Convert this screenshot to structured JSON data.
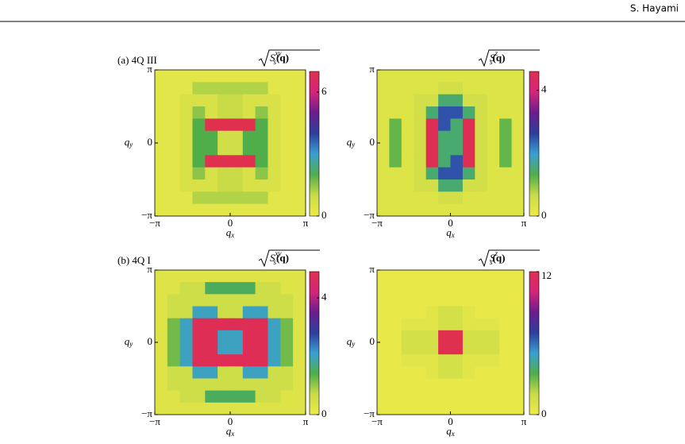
{
  "header": "S. Hayami",
  "chart_data": [
    {
      "type": "heatmap",
      "panel_label": "(a) 4Q III",
      "colorbar_label": {
        "base": "S",
        "sub": "s",
        "sup": "xy",
        "arg": "(q)"
      },
      "xlabel": {
        "base": "q",
        "sub": "x"
      },
      "ylabel": {
        "base": "q",
        "sub": "y"
      },
      "xlim": [
        -3.1416,
        3.1416
      ],
      "ylim": [
        -3.1416,
        3.1416
      ],
      "xticks": [
        {
          "value": -3.1416,
          "label": "−π"
        },
        0,
        {
          "value": 3.1416,
          "label": "π"
        }
      ],
      "yticks": [
        {
          "value": -3.1416,
          "label": "−π"
        },
        0,
        {
          "value": 3.1416,
          "label": "π"
        }
      ],
      "zlim": [
        0,
        7
      ],
      "zticks": [
        0,
        6
      ],
      "colormap": [
        "#eeea48",
        "#c9dc48",
        "#4fae4a",
        "#3aa0d2",
        "#2d3f9e",
        "#6a1d8e",
        "#d5247a",
        "#e03050"
      ],
      "z": [
        [
          0.3,
          0.3,
          0.3,
          0.3,
          0.3,
          0.3,
          0.3,
          0.3,
          0.3,
          0.3,
          0.3,
          0.3
        ],
        [
          0.3,
          0.3,
          0.3,
          1.2,
          1.2,
          1.2,
          1.2,
          1.2,
          1.2,
          0.3,
          0.3,
          0.3
        ],
        [
          0.3,
          0.3,
          0.6,
          0.6,
          0.6,
          1.0,
          1.0,
          0.6,
          0.6,
          0.6,
          0.3,
          0.3
        ],
        [
          0.3,
          0.3,
          0.6,
          1.5,
          0.6,
          1.0,
          1.0,
          0.6,
          1.5,
          0.6,
          0.3,
          0.3
        ],
        [
          0.3,
          0.3,
          0.6,
          2.0,
          7,
          7,
          7,
          7,
          2.0,
          0.6,
          0.3,
          0.3
        ],
        [
          0.3,
          0.3,
          0.6,
          2.0,
          2.0,
          0.8,
          0.8,
          2.0,
          2.0,
          0.6,
          0.3,
          0.3
        ],
        [
          0.3,
          0.3,
          0.6,
          2.0,
          2.0,
          0.8,
          0.8,
          2.0,
          2.0,
          0.6,
          0.3,
          0.3
        ],
        [
          0.3,
          0.3,
          0.6,
          2.0,
          7,
          7,
          7,
          7,
          2.0,
          0.6,
          0.3,
          0.3
        ],
        [
          0.3,
          0.3,
          0.6,
          1.5,
          0.6,
          1.0,
          1.0,
          0.6,
          1.5,
          0.6,
          0.3,
          0.3
        ],
        [
          0.3,
          0.3,
          0.6,
          0.6,
          0.6,
          1.0,
          1.0,
          0.6,
          0.6,
          0.6,
          0.3,
          0.3
        ],
        [
          0.3,
          0.3,
          0.3,
          1.2,
          1.2,
          1.2,
          1.2,
          1.2,
          1.2,
          0.3,
          0.3,
          0.3
        ],
        [
          0.3,
          0.3,
          0.3,
          0.3,
          0.3,
          0.3,
          0.3,
          0.3,
          0.3,
          0.3,
          0.3,
          0.3
        ]
      ]
    },
    {
      "type": "heatmap",
      "colorbar_label": {
        "base": "S",
        "sub": "s",
        "sup": "z",
        "arg": "(q)"
      },
      "xlabel": {
        "base": "q",
        "sub": "x"
      },
      "ylabel": {
        "base": "q",
        "sub": "y"
      },
      "xlim": [
        -3.1416,
        3.1416
      ],
      "ylim": [
        -3.1416,
        3.1416
      ],
      "xticks": [
        {
          "value": -3.1416,
          "label": "−π"
        },
        0,
        {
          "value": 3.1416,
          "label": "π"
        }
      ],
      "yticks": [
        {
          "value": -3.1416,
          "label": "−π"
        },
        0,
        {
          "value": 3.1416,
          "label": "π"
        }
      ],
      "zlim": [
        0,
        4.6
      ],
      "zticks": [
        0,
        4
      ],
      "colormap": [
        "#eeea48",
        "#c9dc48",
        "#4fae4a",
        "#3aa0d2",
        "#2d3f9e",
        "#6a1d8e",
        "#d5247a",
        "#e03050"
      ],
      "z": [
        [
          0.3,
          0.3,
          0.3,
          0.3,
          0.3,
          0.3,
          0.3,
          0.3,
          0.3,
          0.3,
          0.3,
          0.3
        ],
        [
          0.3,
          0.3,
          0.3,
          0.3,
          0.3,
          0.5,
          0.5,
          0.3,
          0.3,
          0.3,
          0.3,
          0.3
        ],
        [
          0.3,
          0.3,
          0.3,
          0.5,
          0.5,
          1.5,
          1.5,
          0.5,
          0.5,
          0.3,
          0.3,
          0.3
        ],
        [
          0.3,
          0.3,
          0.3,
          0.5,
          1.5,
          2.5,
          2.5,
          1.5,
          0.5,
          0.3,
          0.3,
          0.3
        ],
        [
          0.3,
          1.2,
          0.3,
          0.5,
          4.5,
          2.5,
          1.5,
          4.5,
          0.5,
          0.3,
          1.2,
          0.3
        ],
        [
          0.3,
          1.2,
          0.3,
          0.5,
          4.5,
          1.5,
          1.5,
          4.5,
          0.5,
          0.3,
          1.2,
          0.3
        ],
        [
          0.3,
          1.2,
          0.3,
          0.5,
          4.5,
          1.5,
          1.5,
          4.5,
          0.5,
          0.3,
          1.2,
          0.3
        ],
        [
          0.3,
          1.2,
          0.3,
          0.5,
          4.5,
          1.5,
          2.5,
          4.5,
          0.5,
          0.3,
          1.2,
          0.3
        ],
        [
          0.3,
          0.3,
          0.3,
          0.5,
          1.5,
          2.5,
          2.5,
          1.5,
          0.5,
          0.3,
          0.3,
          0.3
        ],
        [
          0.3,
          0.3,
          0.3,
          0.5,
          0.5,
          1.5,
          1.5,
          0.5,
          0.5,
          0.3,
          0.3,
          0.3
        ],
        [
          0.3,
          0.3,
          0.3,
          0.3,
          0.3,
          0.5,
          0.5,
          0.3,
          0.3,
          0.3,
          0.3,
          0.3
        ],
        [
          0.3,
          0.3,
          0.3,
          0.3,
          0.3,
          0.3,
          0.3,
          0.3,
          0.3,
          0.3,
          0.3,
          0.3
        ]
      ]
    },
    {
      "type": "heatmap",
      "panel_label": "(b) 4Q I",
      "colorbar_label": {
        "base": "S",
        "sub": "s",
        "sup": "xy",
        "arg": "(q)"
      },
      "xlabel": {
        "base": "q",
        "sub": "x"
      },
      "ylabel": {
        "base": "q",
        "sub": "y"
      },
      "xlim": [
        -3.1416,
        3.1416
      ],
      "ylim": [
        -3.1416,
        3.1416
      ],
      "xticks": [
        {
          "value": -3.1416,
          "label": "−π"
        },
        0,
        {
          "value": 3.1416,
          "label": "π"
        }
      ],
      "yticks": [
        {
          "value": -3.1416,
          "label": "−π"
        },
        0,
        {
          "value": 3.1416,
          "label": "π"
        }
      ],
      "zlim": [
        0,
        4.9
      ],
      "zticks": [
        0,
        4
      ],
      "colormap": [
        "#eeea48",
        "#c9dc48",
        "#4fae4a",
        "#3aa0d2",
        "#2d3f9e",
        "#6a1d8e",
        "#d5247a",
        "#e03050"
      ],
      "z": [
        [
          0.3,
          0.3,
          0.3,
          0.3,
          0.3,
          0.3,
          0.3,
          0.3,
          0.3,
          0.3,
          0.3,
          0.3
        ],
        [
          0.3,
          0.3,
          0.6,
          0.6,
          1.5,
          1.5,
          1.5,
          1.5,
          0.6,
          0.6,
          0.3,
          0.3
        ],
        [
          0.3,
          0.6,
          0.6,
          0.6,
          0.6,
          0.6,
          0.6,
          0.6,
          0.6,
          0.6,
          0.6,
          0.3
        ],
        [
          0.3,
          0.6,
          0.6,
          2.0,
          2.0,
          0.6,
          0.6,
          2.0,
          2.0,
          0.6,
          0.6,
          0.3
        ],
        [
          0.3,
          1.2,
          2.0,
          4.8,
          4.8,
          4.8,
          4.8,
          4.8,
          4.8,
          2.0,
          1.2,
          0.3
        ],
        [
          0.3,
          1.2,
          2.0,
          4.8,
          4.8,
          2.0,
          2.0,
          4.8,
          4.8,
          2.0,
          1.2,
          0.3
        ],
        [
          0.3,
          1.2,
          2.0,
          4.8,
          4.8,
          2.0,
          2.0,
          4.8,
          4.8,
          2.0,
          1.2,
          0.3
        ],
        [
          0.3,
          1.2,
          2.0,
          4.8,
          4.8,
          4.8,
          4.8,
          4.8,
          4.8,
          2.0,
          1.2,
          0.3
        ],
        [
          0.3,
          0.6,
          0.6,
          2.0,
          2.0,
          0.6,
          0.6,
          2.0,
          2.0,
          0.6,
          0.6,
          0.3
        ],
        [
          0.3,
          0.6,
          0.6,
          0.6,
          0.6,
          0.6,
          0.6,
          0.6,
          0.6,
          0.6,
          0.6,
          0.3
        ],
        [
          0.3,
          0.3,
          0.6,
          0.6,
          1.5,
          1.5,
          1.5,
          1.5,
          0.6,
          0.6,
          0.3,
          0.3
        ],
        [
          0.3,
          0.3,
          0.3,
          0.3,
          0.3,
          0.3,
          0.3,
          0.3,
          0.3,
          0.3,
          0.3,
          0.3
        ]
      ]
    },
    {
      "type": "heatmap",
      "colorbar_label": {
        "base": "S",
        "sub": "s",
        "sup": "z",
        "arg": "(q)"
      },
      "xlabel": {
        "base": "q",
        "sub": "x"
      },
      "ylabel": {
        "base": "q",
        "sub": "y"
      },
      "xlim": [
        -3.1416,
        3.1416
      ],
      "ylim": [
        -3.1416,
        3.1416
      ],
      "xticks": [
        {
          "value": -3.1416,
          "label": "−π"
        },
        0,
        {
          "value": 3.1416,
          "label": "π"
        }
      ],
      "yticks": [
        {
          "value": -3.1416,
          "label": "−π"
        },
        0,
        {
          "value": 3.1416,
          "label": "π"
        }
      ],
      "zlim": [
        0,
        12
      ],
      "zticks": [
        0,
        12
      ],
      "colormap": [
        "#eeea48",
        "#c9dc48",
        "#4fae4a",
        "#3aa0d2",
        "#2d3f9e",
        "#6a1d8e",
        "#d5247a",
        "#e03050"
      ],
      "z": [
        [
          0.3,
          0.3,
          0.3,
          0.3,
          0.3,
          0.3,
          0.3,
          0.3,
          0.3,
          0.3,
          0.3,
          0.3
        ],
        [
          0.3,
          0.3,
          0.3,
          0.3,
          0.3,
          0.3,
          0.3,
          0.3,
          0.3,
          0.3,
          0.3,
          0.3
        ],
        [
          0.3,
          0.3,
          0.3,
          0.3,
          0.3,
          0.3,
          0.3,
          0.3,
          0.3,
          0.3,
          0.3,
          0.3
        ],
        [
          0.3,
          0.3,
          0.3,
          0.3,
          0.6,
          1.2,
          1.2,
          0.6,
          0.3,
          0.3,
          0.3,
          0.3
        ],
        [
          0.3,
          0.3,
          0.6,
          0.6,
          0.6,
          1.2,
          1.2,
          0.6,
          0.6,
          0.6,
          0.3,
          0.3
        ],
        [
          0.3,
          0.3,
          1.2,
          1.2,
          1.2,
          12,
          12,
          1.2,
          1.2,
          1.2,
          0.3,
          0.3
        ],
        [
          0.3,
          0.3,
          1.2,
          1.2,
          1.2,
          12,
          12,
          1.2,
          1.2,
          1.2,
          0.3,
          0.3
        ],
        [
          0.3,
          0.3,
          0.6,
          0.6,
          0.6,
          1.2,
          1.2,
          0.6,
          0.6,
          0.6,
          0.3,
          0.3
        ],
        [
          0.3,
          0.3,
          0.3,
          0.3,
          0.6,
          1.2,
          1.2,
          0.6,
          0.3,
          0.3,
          0.3,
          0.3
        ],
        [
          0.3,
          0.3,
          0.3,
          0.3,
          0.3,
          0.3,
          0.3,
          0.3,
          0.3,
          0.3,
          0.3,
          0.3
        ],
        [
          0.3,
          0.3,
          0.3,
          0.3,
          0.3,
          0.3,
          0.3,
          0.3,
          0.3,
          0.3,
          0.3,
          0.3
        ],
        [
          0.3,
          0.3,
          0.3,
          0.3,
          0.3,
          0.3,
          0.3,
          0.3,
          0.3,
          0.3,
          0.3,
          0.3
        ]
      ]
    }
  ]
}
